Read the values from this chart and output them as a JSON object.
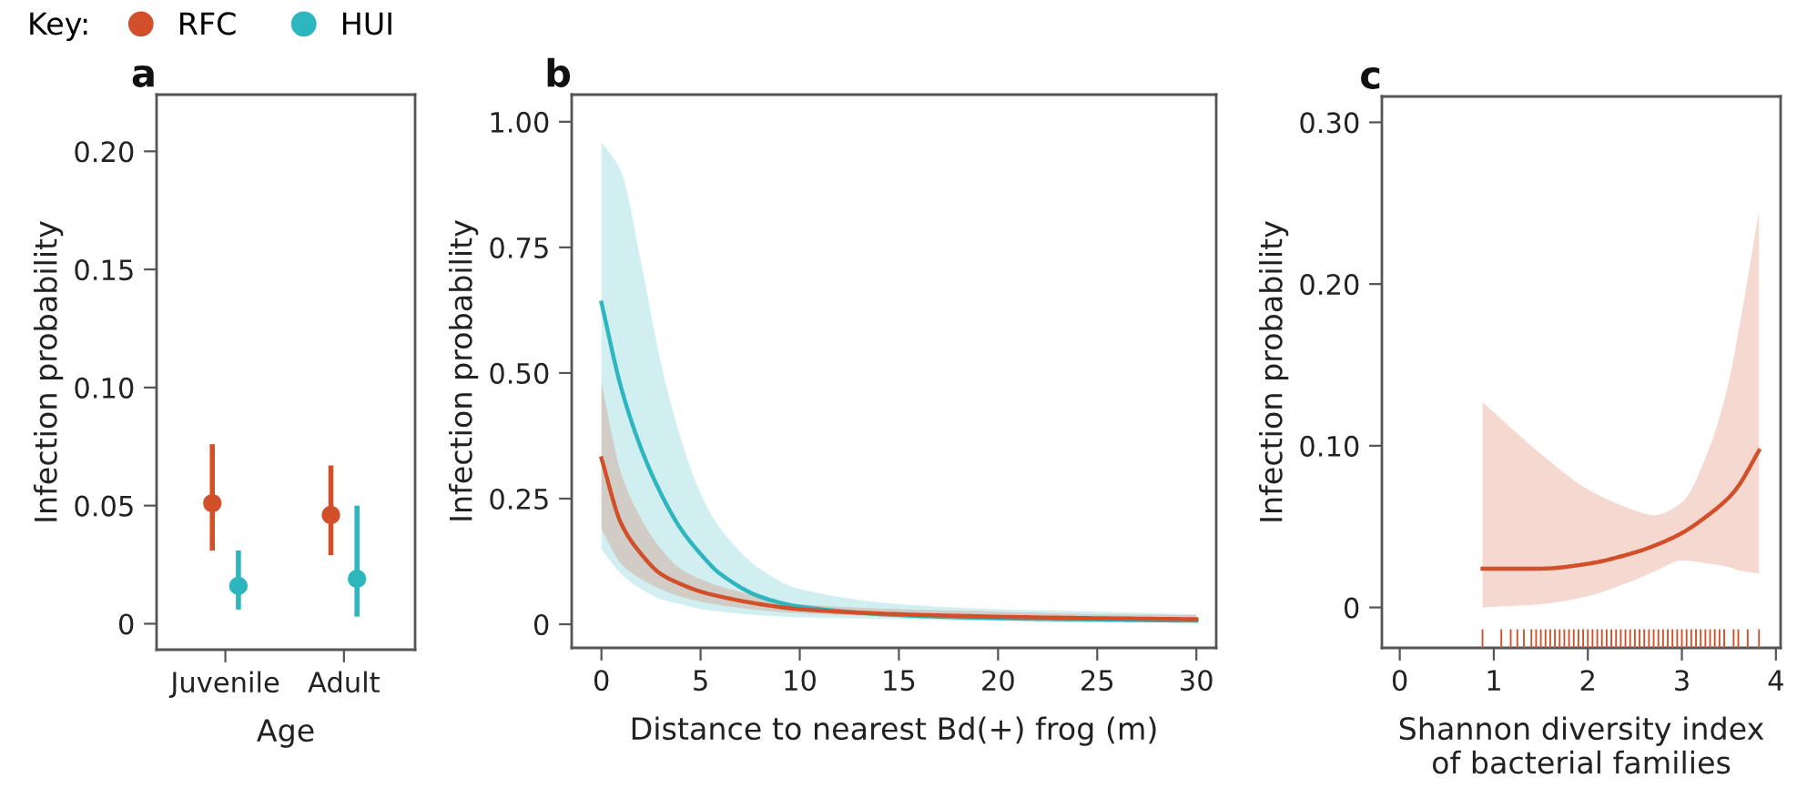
{
  "chart_data": [
    {
      "type": "scatter",
      "title": "a",
      "xlabel": "Age",
      "ylabel": "Infection probability",
      "legend_title": "Key:",
      "legend": "top left",
      "marker": "circle",
      "categories": [
        "Juvenile",
        "Adult"
      ],
      "ylim": [
        -0.011,
        0.224
      ],
      "yticks": [
        {
          "value": 0,
          "label": "0"
        },
        {
          "value": 0.05,
          "label": "0.05"
        },
        {
          "value": 0.1,
          "label": "0.10"
        },
        {
          "value": 0.15,
          "label": "0.15"
        },
        {
          "value": 0.2,
          "label": "0.20"
        }
      ],
      "grid": false,
      "series": [
        {
          "name": "RFC",
          "color": "#d1502a",
          "values": [
            0.051,
            0.046
          ],
          "errors": [
            [
              0.031,
              0.076
            ],
            [
              0.029,
              0.067
            ]
          ]
        },
        {
          "name": "HUI",
          "color": "#2db6bd",
          "values": [
            0.016,
            0.019
          ],
          "errors": [
            [
              0.006,
              0.031
            ],
            [
              0.003,
              0.05
            ]
          ]
        }
      ]
    },
    {
      "type": "line",
      "title": "b",
      "xlabel": "Distance to nearest Bd(+) frog (m)",
      "ylabel": "Infection probability",
      "xlim": [
        -1.5,
        31
      ],
      "ylim": [
        -0.047,
        1.054
      ],
      "xticks": [
        0,
        5,
        10,
        15,
        20,
        25,
        30
      ],
      "yticks": [
        {
          "value": 0,
          "label": "0"
        },
        {
          "value": 0.25,
          "label": "0.25"
        },
        {
          "value": 0.5,
          "label": "0.50"
        },
        {
          "value": 0.75,
          "label": "0.75"
        },
        {
          "value": 1,
          "label": "1.00"
        }
      ],
      "grid": false,
      "line_style": "solid",
      "marker": "none",
      "series": [
        {
          "color": "#2db6bd",
          "x": [
            0,
            1,
            2,
            3,
            4,
            5,
            6,
            8,
            10,
            15,
            20,
            25,
            30
          ],
          "values": [
            0.64,
            0.47,
            0.35,
            0.26,
            0.19,
            0.14,
            0.1,
            0.055,
            0.035,
            0.018,
            0.012,
            0.009,
            0.007
          ],
          "upper": [
            0.96,
            0.9,
            0.72,
            0.52,
            0.37,
            0.26,
            0.19,
            0.11,
            0.07,
            0.04,
            0.03,
            0.025,
            0.02
          ],
          "lower": [
            0.15,
            0.1,
            0.07,
            0.05,
            0.04,
            0.03,
            0.025,
            0.018,
            0.014,
            0.01,
            0.007,
            0.005,
            0.004
          ]
        },
        {
          "color": "#d1502a",
          "x": [
            0,
            1,
            2,
            3,
            4,
            5,
            6,
            8,
            10,
            15,
            20,
            25,
            30
          ],
          "values": [
            0.33,
            0.2,
            0.14,
            0.1,
            0.08,
            0.065,
            0.055,
            0.04,
            0.03,
            0.02,
            0.015,
            0.012,
            0.01
          ],
          "upper": [
            0.48,
            0.3,
            0.21,
            0.15,
            0.11,
            0.09,
            0.075,
            0.055,
            0.04,
            0.03,
            0.025,
            0.02,
            0.018
          ],
          "lower": [
            0.19,
            0.12,
            0.09,
            0.07,
            0.055,
            0.045,
            0.038,
            0.028,
            0.022,
            0.015,
            0.01,
            0.008,
            0.006
          ]
        }
      ]
    },
    {
      "type": "line",
      "title": "c",
      "xlabel": "Shannon diversity index\nof bacterial families",
      "ylabel": "Infection probability",
      "xlim": [
        -0.19,
        4.05
      ],
      "ylim": [
        -0.025,
        0.316
      ],
      "xticks": [
        0,
        1,
        2,
        3,
        4
      ],
      "yticks": [
        {
          "value": 0,
          "label": "0"
        },
        {
          "value": 0.1,
          "label": "0.10"
        },
        {
          "value": 0.2,
          "label": "0.20"
        },
        {
          "value": 0.3,
          "label": "0.30"
        }
      ],
      "grid": false,
      "line_style": "solid",
      "marker": "none",
      "series": [
        {
          "color": "#d1502a",
          "x": [
            0.88,
            1.5,
            2,
            2.5,
            2.7,
            3,
            3.3,
            3.5,
            3.6,
            3.82
          ],
          "values": [
            0.024,
            0.024,
            0.027,
            0.034,
            0.038,
            0.046,
            0.058,
            0.068,
            0.075,
            0.097
          ],
          "upper": [
            0.127,
            0.095,
            0.073,
            0.06,
            0.057,
            0.065,
            0.1,
            0.14,
            0.17,
            0.245
          ],
          "lower": [
            0.0,
            0.002,
            0.007,
            0.017,
            0.022,
            0.029,
            0.027,
            0.025,
            0.023,
            0.021
          ]
        },
        {
          "type": "bar",
          "base": [
            -0.025,
            -0.025,
            -0.025,
            -0.025,
            -0.025,
            -0.025,
            -0.025,
            -0.025,
            -0.025,
            -0.025,
            -0.025,
            -0.025,
            -0.025,
            -0.025,
            -0.025,
            -0.025,
            -0.025,
            -0.025,
            -0.025,
            -0.025,
            -0.025,
            -0.025,
            -0.025,
            -0.025,
            -0.025,
            -0.025,
            -0.025,
            -0.025,
            -0.025,
            -0.025,
            -0.025,
            -0.025,
            -0.025,
            -0.025,
            -0.025,
            -0.025,
            -0.025,
            -0.025,
            -0.025,
            -0.025,
            -0.025,
            -0.025,
            -0.025,
            -0.025,
            -0.025,
            -0.025,
            -0.025,
            -0.025,
            -0.025,
            -0.025,
            -0.025
          ],
          "color": "#d1502a",
          "x": [
            0.88,
            1.08,
            1.18,
            1.25,
            1.32,
            1.4,
            1.45,
            1.5,
            1.55,
            1.6,
            1.65,
            1.7,
            1.75,
            1.8,
            1.85,
            1.9,
            1.95,
            2.0,
            2.05,
            2.1,
            2.15,
            2.2,
            2.25,
            2.3,
            2.35,
            2.4,
            2.45,
            2.5,
            2.55,
            2.6,
            2.65,
            2.7,
            2.75,
            2.8,
            2.85,
            2.9,
            2.95,
            3.0,
            3.05,
            3.1,
            3.15,
            3.2,
            3.25,
            3.3,
            3.35,
            3.4,
            3.45,
            3.55,
            3.6,
            3.7,
            3.82
          ],
          "values": [
            0.0115,
            0.0115,
            0.0115,
            0.0115,
            0.0115,
            0.0115,
            0.0115,
            0.0115,
            0.0115,
            0.0115,
            0.0115,
            0.0115,
            0.0115,
            0.0115,
            0.0115,
            0.0115,
            0.0115,
            0.0115,
            0.0115,
            0.0115,
            0.0115,
            0.0115,
            0.0115,
            0.0115,
            0.0115,
            0.0115,
            0.0115,
            0.0115,
            0.0115,
            0.0115,
            0.0115,
            0.0115,
            0.0115,
            0.0115,
            0.0115,
            0.0115,
            0.0115,
            0.0115,
            0.0115,
            0.0115,
            0.0115,
            0.0115,
            0.0115,
            0.0115,
            0.0115,
            0.0115,
            0.0115,
            0.0115,
            0.0115,
            0.0115,
            0.0115
          ]
        }
      ]
    }
  ]
}
